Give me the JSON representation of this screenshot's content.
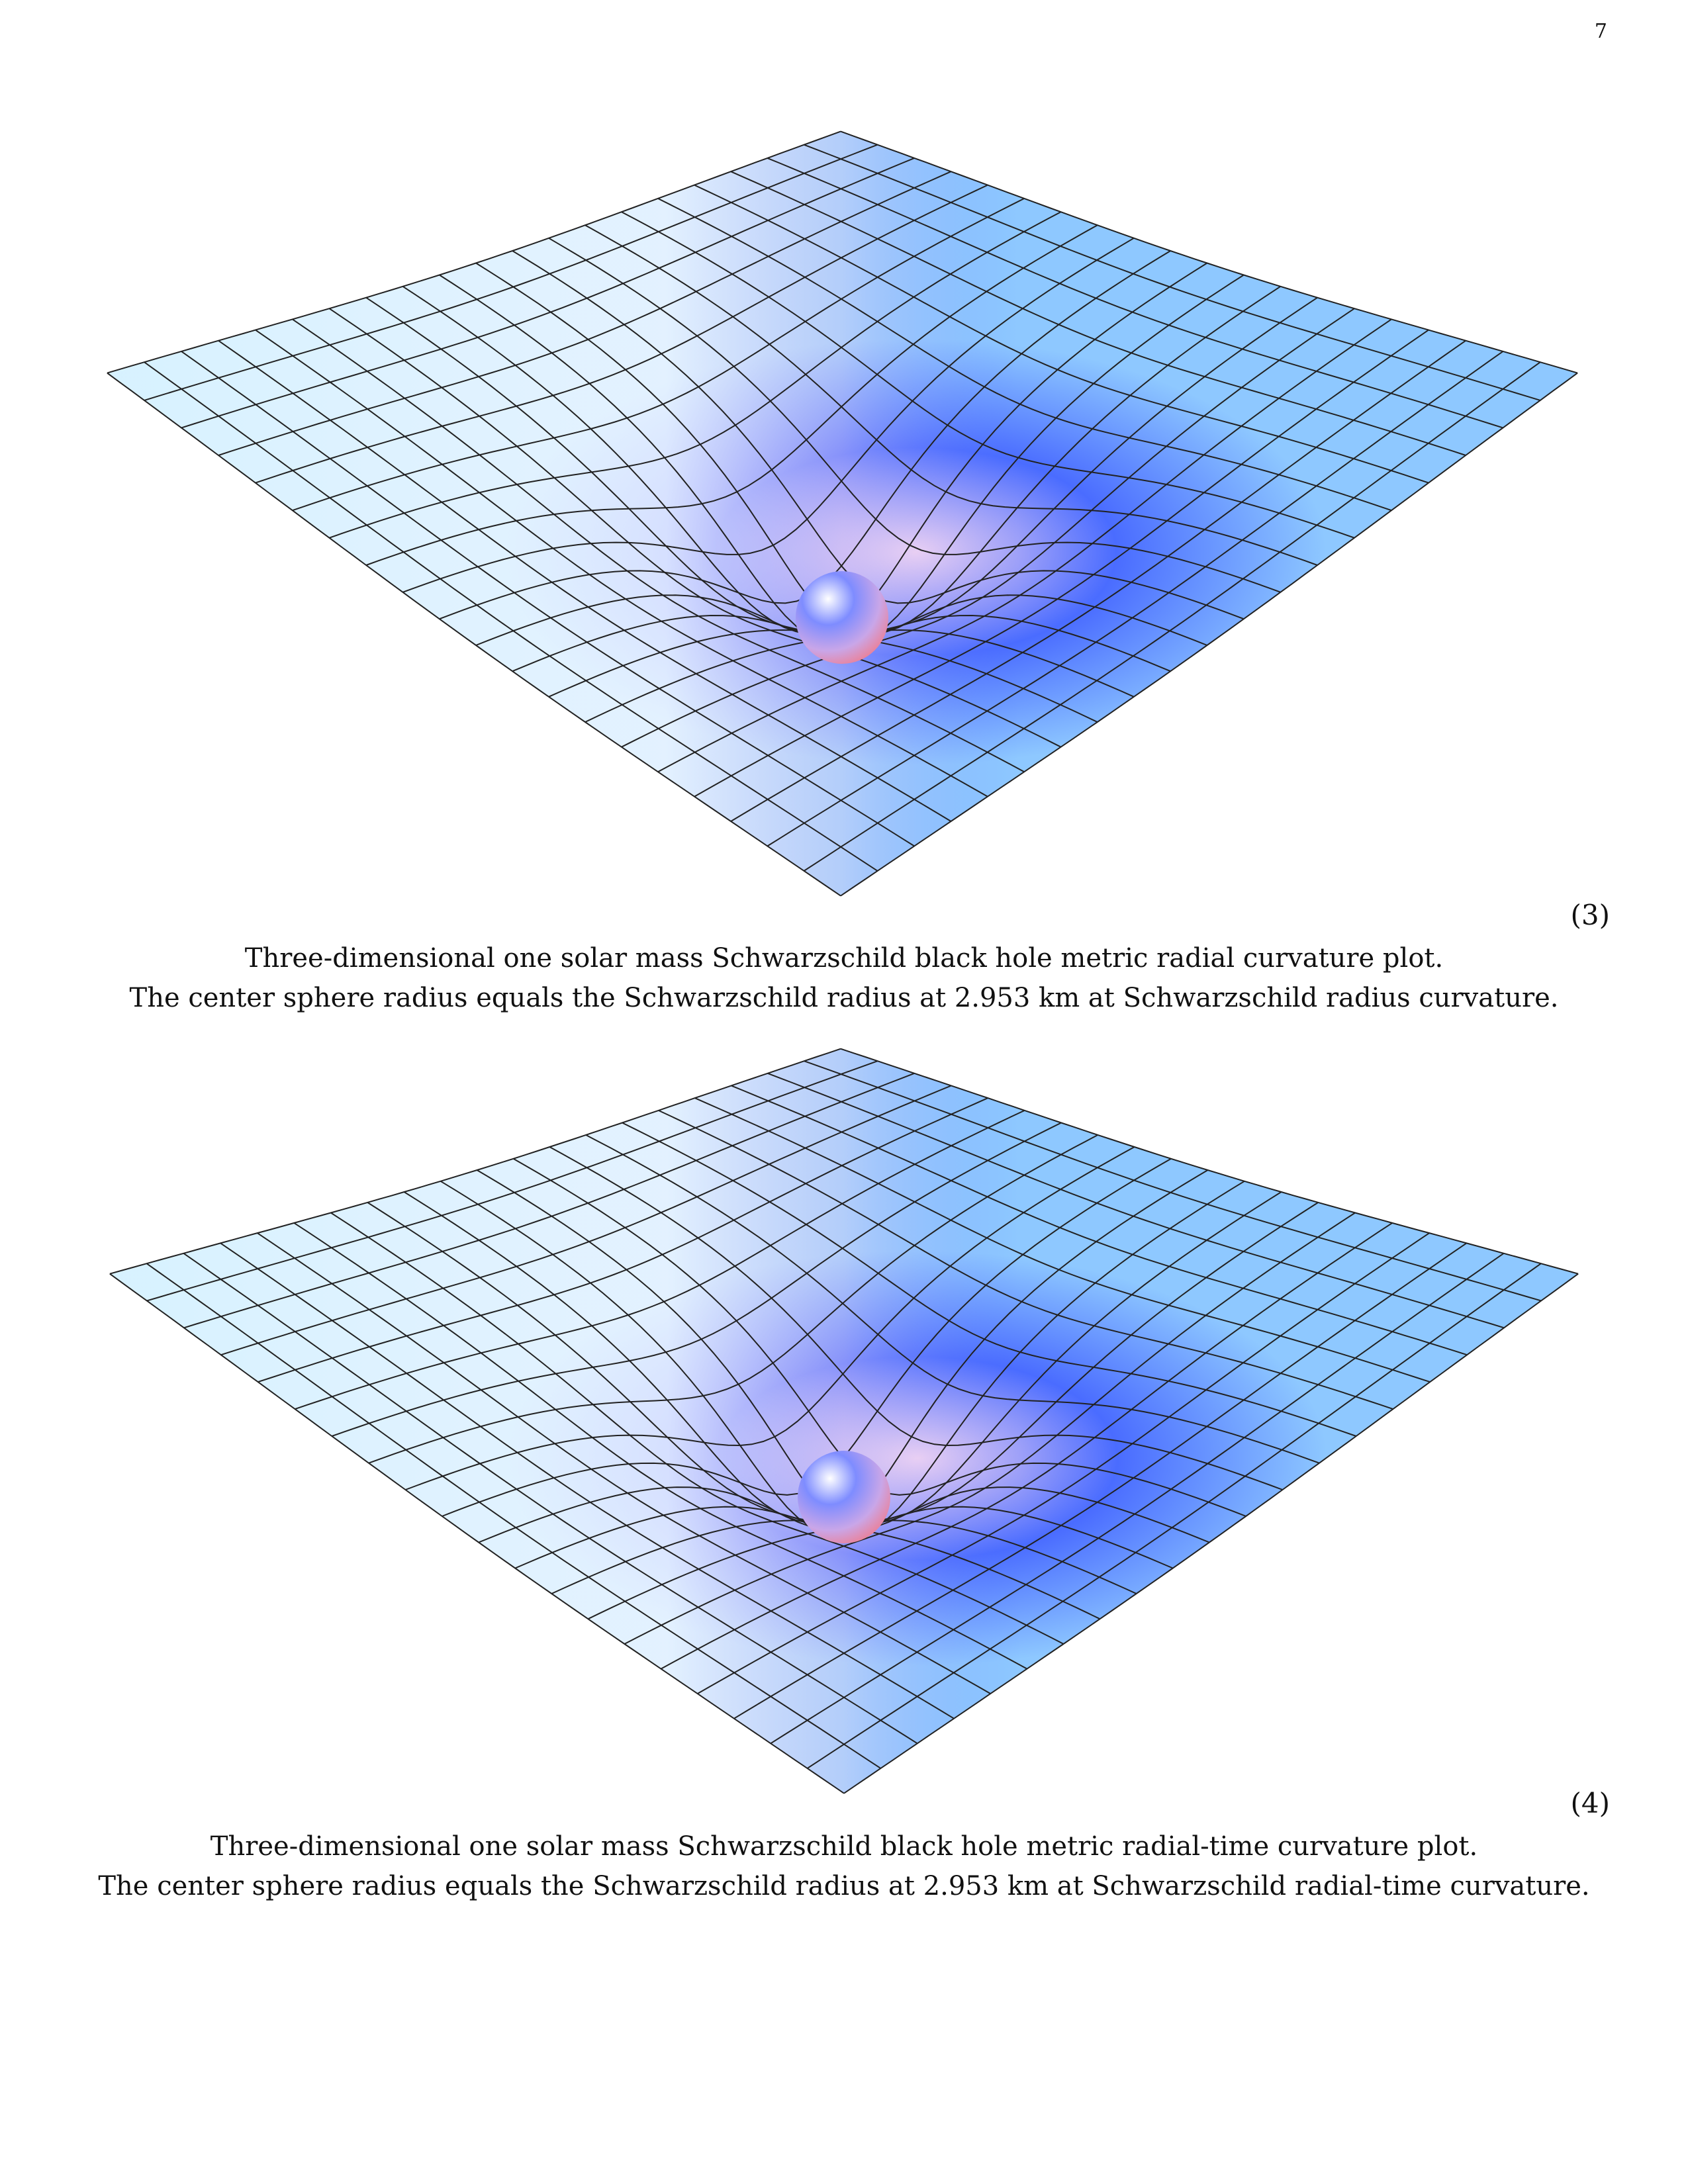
{
  "page": {
    "number": "7"
  },
  "figures": [
    {
      "equation_number": "(3)",
      "caption_lines": [
        "Three-dimensional one solar mass Schwarzschild black hole metric radial curvature plot.",
        "The center sphere radius equals the Schwarzschild radius at 2.953 km at Schwarzschild radius curvature."
      ]
    },
    {
      "equation_number": "(4)",
      "caption_lines": [
        "Three-dimensional one solar mass Schwarzschild black hole metric radial-time curvature plot.",
        "The center sphere radius equals the Schwarzschild radius at 2.953 km at Schwarzschild radial-time curvature."
      ]
    }
  ],
  "colors": {
    "surface_light": "#dff6ff",
    "surface_mid": "#8ec8ff",
    "surface_deep": "#4a6cff",
    "surface_pink": "#f7d8f2",
    "grid_line": "#222222",
    "sphere_top": "#7e8cff",
    "sphere_bottom": "#f07a8a"
  },
  "grid_divisions": 20
}
